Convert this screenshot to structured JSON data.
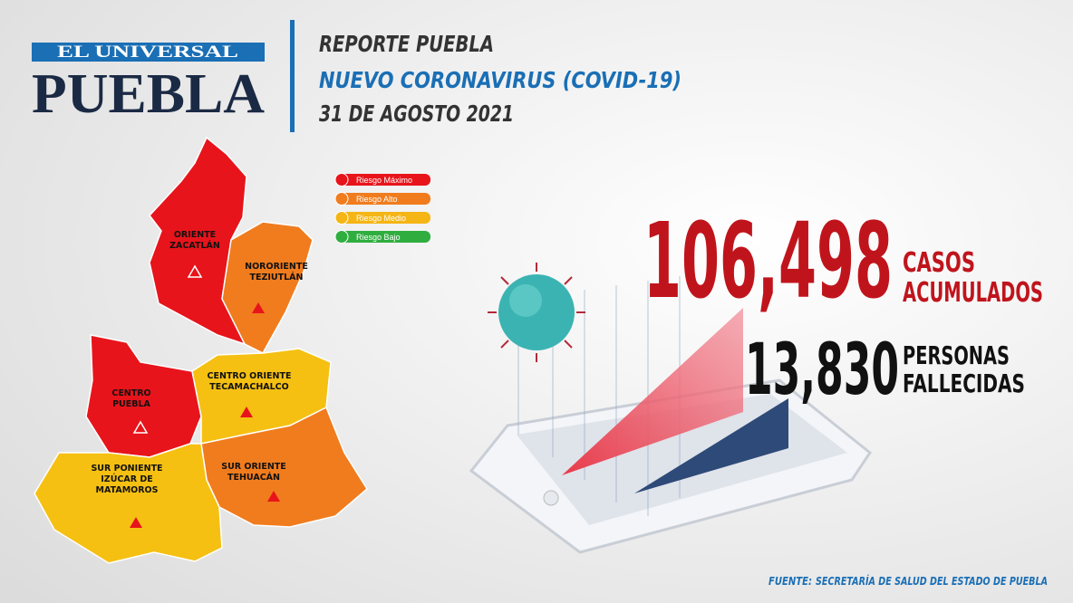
{
  "header": {
    "brand": "EL UNIVERSAL",
    "edition": "PUEBLA",
    "title_lines": [
      "REPORTE PUEBLA",
      "NUEVO CORONAVIRUS (COVID-19)",
      "31 DE AGOSTO 2021"
    ]
  },
  "legend": [
    {
      "label": "Riesgo Máximo",
      "color": "#e8141b"
    },
    {
      "label": "Riesgo Alto",
      "color": "#f07c1e"
    },
    {
      "label": "Riesgo Medio",
      "color": "#f5b514"
    },
    {
      "label": "Riesgo Bajo",
      "color": "#2fae3f"
    }
  ],
  "regions": [
    {
      "lines": [
        "ORIENTE",
        "ZACATLÁN"
      ],
      "color": "#e8141b"
    },
    {
      "lines": [
        "NORORIENTE",
        "TEZIUTLÁN"
      ],
      "color": "#f07c1e"
    },
    {
      "lines": [
        "CENTRO",
        "PUEBLA"
      ],
      "color": "#e8141b"
    },
    {
      "lines": [
        "CENTRO ORIENTE",
        "TECAMACHALCO"
      ],
      "color": "#f5c012"
    },
    {
      "lines": [
        "SUR ORIENTE",
        "TEHUACÁN"
      ],
      "color": "#f07c1e"
    },
    {
      "lines": [
        "SUR PONIENTE",
        "IZÚCAR DE",
        "MATAMOROS"
      ],
      "color": "#f5c012"
    }
  ],
  "stats": [
    {
      "value": "106,498",
      "lines": [
        "CASOS",
        "ACUMULADOS"
      ]
    },
    {
      "value": "13,830",
      "lines": [
        "PERSONAS",
        "FALLECIDAS"
      ]
    }
  ],
  "source": {
    "label": "FUENTE:",
    "text": "SECRETARÍA DE SALUD DEL ESTADO DE PUEBLA"
  }
}
